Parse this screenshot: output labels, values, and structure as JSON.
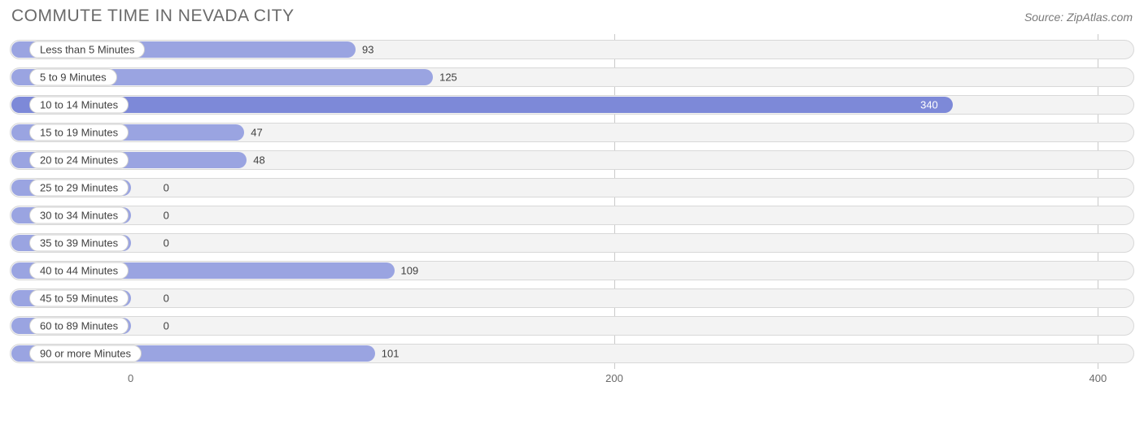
{
  "header": {
    "title": "COMMUTE TIME IN NEVADA CITY",
    "source": "Source: ZipAtlas.com"
  },
  "chart": {
    "type": "bar-horizontal",
    "background_color": "#ffffff",
    "track_color": "#f3f3f3",
    "track_border_color": "#d8d8d8",
    "grid_color": "#c9c9c9",
    "bar_color": "#9aa4e1",
    "bar_highlight_color": "#7d89d8",
    "pill_bg": "#ffffff",
    "pill_border": "#cfcfcf",
    "label_color": "#404040",
    "axis_label_color": "#6a6a6a",
    "title_color": "#6a6a6a",
    "label_fontsize": 13,
    "title_fontsize": 21,
    "x_min": -50,
    "x_max": 415,
    "x_ticks": [
      0,
      200,
      400
    ],
    "grid_at": [
      200,
      400
    ],
    "zero_offset_pct": 14.5,
    "rows": [
      {
        "category": "Less than 5 Minutes",
        "value": 93,
        "highlight": false
      },
      {
        "category": "5 to 9 Minutes",
        "value": 125,
        "highlight": false
      },
      {
        "category": "10 to 14 Minutes",
        "value": 340,
        "highlight": true
      },
      {
        "category": "15 to 19 Minutes",
        "value": 47,
        "highlight": false
      },
      {
        "category": "20 to 24 Minutes",
        "value": 48,
        "highlight": false
      },
      {
        "category": "25 to 29 Minutes",
        "value": 0,
        "highlight": false
      },
      {
        "category": "30 to 34 Minutes",
        "value": 0,
        "highlight": false
      },
      {
        "category": "35 to 39 Minutes",
        "value": 0,
        "highlight": false
      },
      {
        "category": "40 to 44 Minutes",
        "value": 109,
        "highlight": false
      },
      {
        "category": "45 to 59 Minutes",
        "value": 0,
        "highlight": false
      },
      {
        "category": "60 to 89 Minutes",
        "value": 0,
        "highlight": false
      },
      {
        "category": "90 or more Minutes",
        "value": 101,
        "highlight": false
      }
    ]
  }
}
